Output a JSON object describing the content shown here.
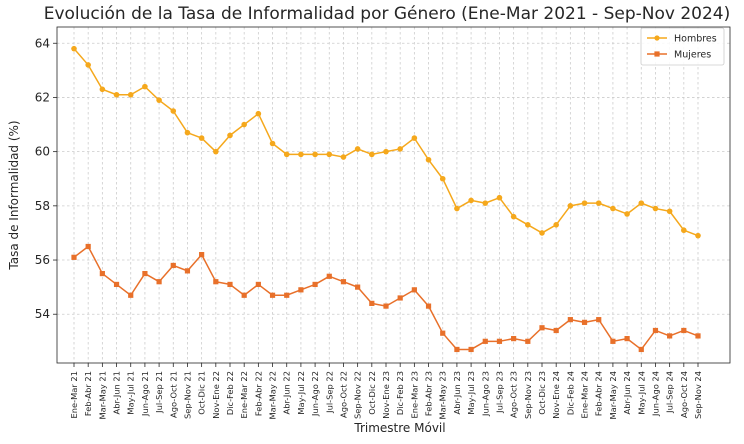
{
  "chart_data": {
    "type": "line",
    "title": "Evolución de la Tasa de Informalidad por Género (Ene-Mar 2021 - Sep-Nov 2024)",
    "xlabel": "Trimestre Móvil",
    "ylabel": "Tasa de Informalidad (%)",
    "ylim": [
      52.2,
      64.6
    ],
    "yticks": [
      54,
      56,
      58,
      60,
      62,
      64
    ],
    "grid": true,
    "legend_position": "top-right",
    "categories": [
      "Ene-Mar 21",
      "Feb-Abr 21",
      "Mar-May 21",
      "Abr-Jun 21",
      "May-Jul 21",
      "Jun-Ago 21",
      "Jul-Sep 21",
      "Ago-Oct 21",
      "Sep-Nov 21",
      "Oct-Dic 21",
      "Nov-Ene 22",
      "Dic-Feb 22",
      "Ene-Mar 22",
      "Feb-Abr 22",
      "Mar-May 22",
      "Abr-Jun 22",
      "May-Jul 22",
      "Jun-Ago 22",
      "Jul-Sep 22",
      "Ago-Oct 22",
      "Sep-Nov 22",
      "Oct-Dic 22",
      "Nov-Ene 23",
      "Dic-Feb 23",
      "Ene-Mar 23",
      "Feb-Abr 23",
      "Mar-May 23",
      "Abr-Jun 23",
      "May-Jul 23",
      "Jun-Ago 23",
      "Jul-Sep 23",
      "Ago-Oct 23",
      "Sep-Nov 23",
      "Oct-Dic 23",
      "Nov-Ene 24",
      "Dic-Feb 24",
      "Ene-Mar 24",
      "Feb-Abr 24",
      "Mar-May 24",
      "Abr-Jun 24",
      "May-Jul 24",
      "Jun-Ago 24",
      "Jul-Sep 24",
      "Ago-Oct 24",
      "Sep-Nov 24"
    ],
    "series": [
      {
        "name": "Hombres",
        "color": "#f5a81c",
        "marker": "circle",
        "values": [
          63.8,
          63.2,
          62.3,
          62.1,
          62.1,
          62.4,
          61.9,
          61.5,
          60.7,
          60.5,
          60.0,
          60.6,
          61.0,
          61.4,
          60.3,
          59.9,
          59.9,
          59.9,
          59.9,
          59.8,
          60.1,
          59.9,
          60.0,
          60.1,
          60.5,
          59.7,
          59.0,
          57.9,
          58.2,
          58.1,
          58.3,
          57.6,
          57.3,
          57.0,
          57.3,
          58.0,
          58.1,
          58.1,
          57.9,
          57.7,
          58.1,
          57.9,
          57.8,
          57.1,
          56.9
        ]
      },
      {
        "name": "Mujeres",
        "color": "#e8702a",
        "marker": "square",
        "values": [
          56.1,
          56.5,
          55.5,
          55.1,
          54.7,
          55.5,
          55.2,
          55.8,
          55.6,
          56.2,
          55.2,
          55.1,
          54.7,
          55.1,
          54.7,
          54.7,
          54.9,
          55.1,
          55.4,
          55.2,
          55.0,
          54.4,
          54.3,
          54.6,
          54.9,
          54.3,
          53.3,
          52.7,
          52.7,
          53.0,
          53.0,
          53.1,
          53.0,
          53.5,
          53.4,
          53.8,
          53.7,
          53.8,
          53.0,
          53.1,
          52.7,
          53.4,
          53.2,
          53.4,
          53.2
        ]
      }
    ]
  }
}
